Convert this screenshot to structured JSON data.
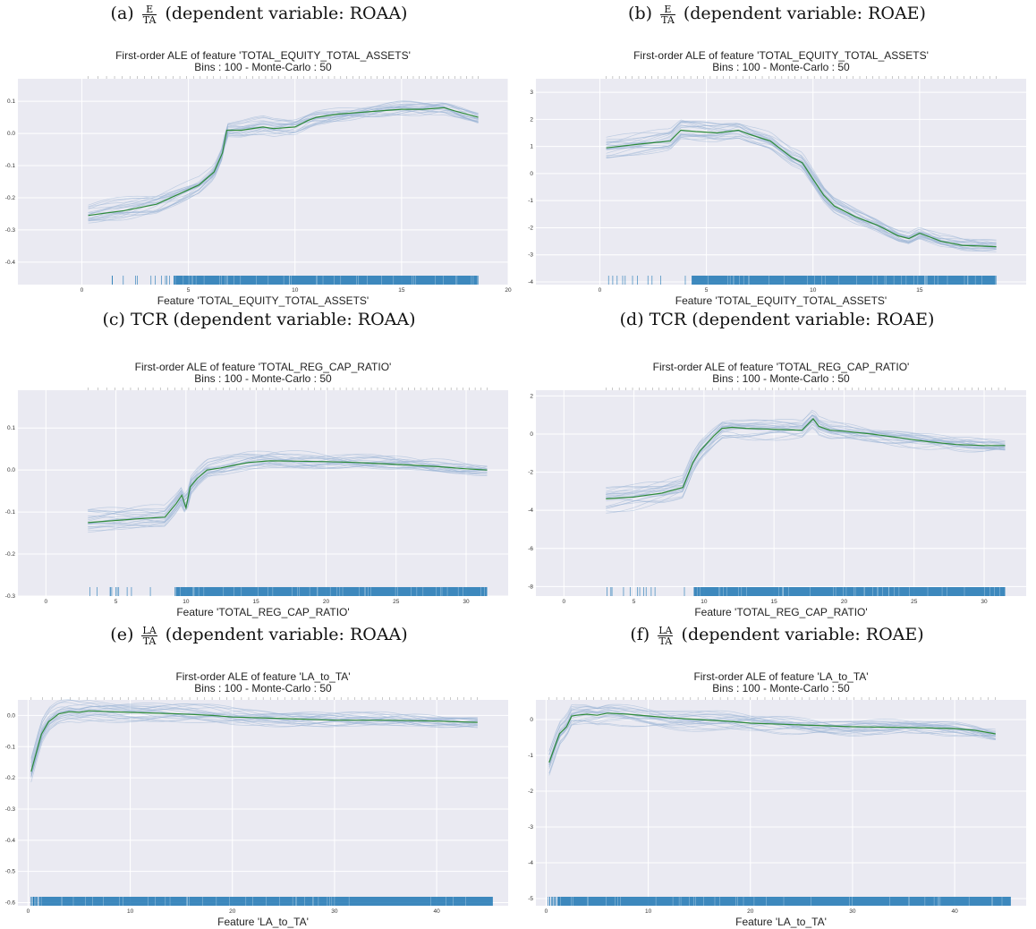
{
  "captions": [
    {
      "prefix": "(a)",
      "frac_num": "E",
      "frac_den": "TA",
      "text": "(dependent variable: ROAA)"
    },
    {
      "prefix": "(b)",
      "frac_num": "E",
      "frac_den": "TA",
      "text": "(dependent variable: ROAE)"
    },
    {
      "prefix": "(c)",
      "frac_num": "",
      "frac_den": "",
      "text": "TCR (dependent variable: ROAA)"
    },
    {
      "prefix": "(d)",
      "frac_num": "",
      "frac_den": "",
      "text": "TCR (dependent variable: ROAE)"
    },
    {
      "prefix": "(e)",
      "frac_num": "LA",
      "frac_den": "TA",
      "text": "(dependent variable: ROAA)"
    },
    {
      "prefix": "(f)",
      "frac_num": "LA",
      "frac_den": "TA",
      "text": "(dependent variable: ROAE)"
    }
  ],
  "colors": {
    "background": "#eaeaf2",
    "grid": "#ffffff",
    "mean_line": "#2e8b3a",
    "mc_lines": "#9bb4d6",
    "rug": "#1f77b4"
  },
  "chart_data": [
    {
      "type": "line",
      "title": "First-order ALE of feature 'TOTAL_EQUITY_TOTAL_ASSETS'",
      "subtitle": "Bins : 100 - Monte-Carlo : 50",
      "xlabel": "Feature 'TOTAL_EQUITY_TOTAL_ASSETS'",
      "ylabel": "",
      "xlim": [
        -3,
        20
      ],
      "ylim": [
        -0.47,
        0.17
      ],
      "xticks": [
        "0",
        "5",
        "10",
        "15",
        "20"
      ],
      "xtick_values": [
        0,
        5,
        10,
        15,
        20
      ],
      "yticks": [
        "-0.4",
        "-0.3",
        "-0.2",
        "-0.1",
        "0.0",
        "0.1"
      ],
      "ytick_values": [
        -0.4,
        -0.3,
        -0.2,
        -0.1,
        0.0,
        0.1
      ],
      "grid": true,
      "rug_start": 0.3,
      "rug_end": 18.6,
      "series": [
        {
          "x": [
            0.3,
            2,
            3.5,
            4.5,
            5.5,
            6.2,
            6.6,
            6.8,
            7.5,
            8.5,
            9,
            10,
            10.6,
            11,
            12,
            13,
            14,
            15,
            16,
            17,
            17.5,
            18.6
          ],
          "y": [
            -0.255,
            -0.24,
            -0.22,
            -0.19,
            -0.16,
            -0.12,
            -0.06,
            0.01,
            0.01,
            0.02,
            0.015,
            0.02,
            0.04,
            0.05,
            0.06,
            0.065,
            0.07,
            0.075,
            0.075,
            0.08,
            0.07,
            0.05
          ]
        }
      ]
    },
    {
      "type": "line",
      "title": "First-order ALE of feature 'TOTAL_EQUITY_TOTAL_ASSETS'",
      "subtitle": "Bins : 100 - Monte-Carlo : 50",
      "xlabel": "Feature 'TOTAL_EQUITY_TOTAL_ASSETS'",
      "ylabel": "",
      "xlim": [
        -3,
        20
      ],
      "ylim": [
        -4.1,
        3.5
      ],
      "xticks": [
        "0",
        "5",
        "10",
        "15"
      ],
      "xtick_values": [
        0,
        5,
        10,
        15
      ],
      "yticks": [
        "-4",
        "-3",
        "-2",
        "-1",
        "0",
        "1",
        "2",
        "3"
      ],
      "ytick_values": [
        -4,
        -3,
        -2,
        -1,
        0,
        1,
        2,
        3
      ],
      "grid": true,
      "rug_start": 0.3,
      "rug_end": 18.6,
      "series": [
        {
          "x": [
            0.3,
            2,
            3.3,
            3.8,
            4.5,
            5.5,
            6.5,
            7,
            8,
            8.5,
            9,
            9.5,
            10,
            10.5,
            11,
            12,
            13,
            14,
            14.5,
            15,
            16,
            17,
            18.6
          ],
          "y": [
            0.95,
            1.1,
            1.2,
            1.6,
            1.55,
            1.5,
            1.6,
            1.45,
            1.2,
            0.9,
            0.6,
            0.4,
            -0.2,
            -0.8,
            -1.2,
            -1.6,
            -1.9,
            -2.3,
            -2.4,
            -2.2,
            -2.5,
            -2.65,
            -2.7
          ]
        }
      ]
    },
    {
      "type": "line",
      "title": "First-order ALE of feature 'TOTAL_REG_CAP_RATIO'",
      "subtitle": "Bins : 100 - Monte-Carlo : 50",
      "xlabel": "Feature 'TOTAL_REG_CAP_RATIO'",
      "ylabel": "",
      "xlim": [
        -2,
        33
      ],
      "ylim": [
        -0.3,
        0.19
      ],
      "xticks": [
        "0",
        "5",
        "10",
        "15",
        "20",
        "25",
        "30"
      ],
      "xtick_values": [
        0,
        5,
        10,
        15,
        20,
        25,
        30
      ],
      "yticks": [
        "-0.3",
        "-0.2",
        "-0.1",
        "0.0",
        "0.1"
      ],
      "ytick_values": [
        -0.3,
        -0.2,
        -0.1,
        0.0,
        0.1
      ],
      "grid": true,
      "rug_start": 3,
      "rug_end": 31.5,
      "series": [
        {
          "x": [
            3,
            5,
            7,
            8.5,
            9.3,
            9.7,
            10,
            10.3,
            10.8,
            11.5,
            12.5,
            13.5,
            14.5,
            16,
            18,
            20,
            22,
            24,
            26,
            28,
            30,
            31.5
          ],
          "y": [
            -0.125,
            -0.12,
            -0.115,
            -0.112,
            -0.08,
            -0.06,
            -0.09,
            -0.04,
            -0.02,
            0.0,
            0.005,
            0.012,
            0.018,
            0.022,
            0.021,
            0.02,
            0.018,
            0.015,
            0.012,
            0.008,
            0.003,
            0.0
          ]
        }
      ]
    },
    {
      "type": "line",
      "title": "First-order ALE of feature 'TOTAL_REG_CAP_RATIO'",
      "subtitle": "Bins : 100 - Monte-Carlo : 50",
      "xlabel": "Feature 'TOTAL_REG_CAP_RATIO'",
      "ylabel": "",
      "xlim": [
        -2,
        33
      ],
      "ylim": [
        -8.5,
        2.3
      ],
      "xticks": [
        "0",
        "5",
        "10",
        "15",
        "20",
        "25",
        "30"
      ],
      "xtick_values": [
        0,
        5,
        10,
        15,
        20,
        25,
        30
      ],
      "yticks": [
        "-8",
        "-6",
        "-4",
        "-2",
        "0",
        "2"
      ],
      "ytick_values": [
        -8,
        -6,
        -4,
        -2,
        0,
        2
      ],
      "grid": true,
      "rug_start": 3,
      "rug_end": 31.5,
      "series": [
        {
          "x": [
            3,
            5,
            7,
            8.5,
            9.2,
            9.7,
            10.2,
            10.7,
            11.3,
            12,
            13,
            15,
            17,
            17.8,
            18.2,
            19,
            20,
            22,
            24,
            26,
            28,
            30,
            31.5
          ],
          "y": [
            -3.4,
            -3.3,
            -3.1,
            -2.8,
            -1.5,
            -0.9,
            -0.5,
            -0.1,
            0.3,
            0.35,
            0.3,
            0.25,
            0.2,
            0.8,
            0.4,
            0.2,
            0.15,
            0.0,
            -0.2,
            -0.4,
            -0.55,
            -0.6,
            -0.6
          ]
        }
      ]
    },
    {
      "type": "line",
      "title": "First-order ALE of feature 'LA_to_TA'",
      "subtitle": "Bins : 100 - Monte-Carlo : 50",
      "xlabel": "Feature 'LA_to_TA'",
      "ylabel": "",
      "xlim": [
        -1,
        47
      ],
      "ylim": [
        -0.61,
        0.05
      ],
      "xticks": [
        "0",
        "10",
        "20",
        "30",
        "40"
      ],
      "xtick_values": [
        0,
        10,
        20,
        30,
        40
      ],
      "yticks": [
        "-0.6",
        "-0.5",
        "-0.4",
        "-0.3",
        "-0.2",
        "-0.1",
        "0.0"
      ],
      "ytick_values": [
        -0.6,
        -0.5,
        -0.4,
        -0.3,
        -0.2,
        -0.1,
        0.0
      ],
      "grid": true,
      "rug_start": 0.2,
      "rug_end": 45.5,
      "series": [
        {
          "x": [
            0.3,
            0.8,
            1.3,
            2,
            3,
            4,
            5,
            6,
            8,
            10,
            12,
            15,
            18,
            20,
            25,
            30,
            35,
            40,
            44
          ],
          "y": [
            -0.18,
            -0.12,
            -0.06,
            -0.02,
            0.005,
            0.012,
            0.01,
            0.015,
            0.012,
            0.01,
            0.008,
            0.005,
            0.0,
            -0.005,
            -0.01,
            -0.015,
            -0.015,
            -0.018,
            -0.022
          ]
        }
      ]
    },
    {
      "type": "line",
      "title": "First-order ALE of feature 'LA_to_TA'",
      "subtitle": "Bins : 100 - Monte-Carlo : 50",
      "xlabel": "Feature 'LA_to_TA'",
      "ylabel": "",
      "xlim": [
        -1,
        47
      ],
      "ylim": [
        -5.2,
        0.55
      ],
      "xticks": [
        "0",
        "10",
        "20",
        "30",
        "40"
      ],
      "xtick_values": [
        0,
        10,
        20,
        30,
        40
      ],
      "yticks": [
        "-5",
        "-4",
        "-3",
        "-2",
        "-1",
        "0"
      ],
      "ytick_values": [
        -5,
        -4,
        -3,
        -2,
        -1,
        0
      ],
      "grid": true,
      "rug_start": 0.2,
      "rug_end": 45.5,
      "series": [
        {
          "x": [
            0.3,
            0.8,
            1.3,
            2,
            2.5,
            3,
            4,
            5,
            6,
            8,
            10,
            12,
            15,
            18,
            20,
            25,
            30,
            35,
            40,
            42,
            44
          ],
          "y": [
            -1.2,
            -0.8,
            -0.4,
            -0.2,
            0.1,
            0.12,
            0.15,
            0.12,
            0.18,
            0.15,
            0.1,
            0.05,
            0.0,
            -0.05,
            -0.1,
            -0.15,
            -0.2,
            -0.22,
            -0.25,
            -0.3,
            -0.4
          ]
        }
      ]
    }
  ]
}
